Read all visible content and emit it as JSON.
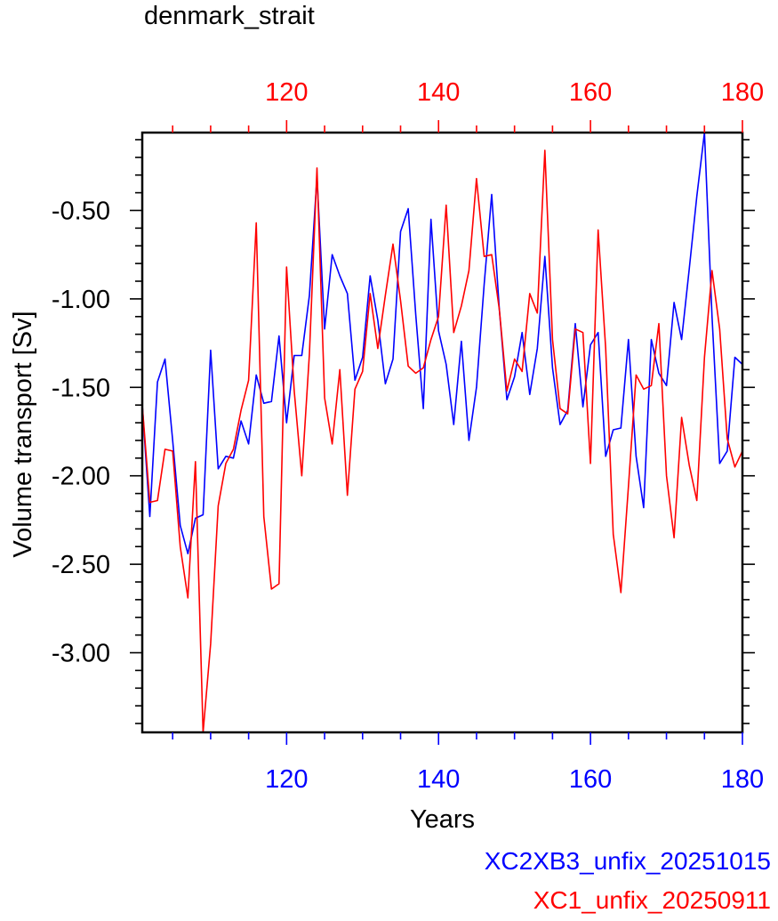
{
  "chart_data": {
    "type": "line",
    "title": "denmark_strait",
    "xlabel": "Years",
    "ylabel": "Volume transport [Sv]",
    "xlim": [
      101,
      180
    ],
    "ylim": [
      -3.45,
      -0.06
    ],
    "x_ticks": [
      120,
      140,
      160,
      180
    ],
    "x_tick_labels": [
      "120",
      "140",
      "160",
      "180"
    ],
    "y_ticks": [
      -3.0,
      -2.5,
      -2.0,
      -1.5,
      -1.0,
      -0.5
    ],
    "y_tick_labels": [
      "-3.00",
      "-2.50",
      "-2.00",
      "-1.50",
      "-1.00",
      "-0.50"
    ],
    "bottom_axis_color": "#0000ff",
    "top_axis_color": "#ff0000",
    "legend_position": "bottom-right",
    "series": [
      {
        "name": "XC2XB3_unfix_20251015",
        "color": "#0000ff",
        "x_start": 101,
        "values": [
          -1.6,
          -2.23,
          -1.47,
          -1.34,
          -1.8,
          -2.28,
          -2.44,
          -2.24,
          -2.22,
          -1.29,
          -1.96,
          -1.89,
          -1.9,
          -1.69,
          -1.82,
          -1.43,
          -1.59,
          -1.58,
          -1.21,
          -1.7,
          -1.32,
          -1.32,
          -0.98,
          -0.31,
          -1.17,
          -0.75,
          -0.87,
          -0.97,
          -1.46,
          -1.33,
          -0.87,
          -1.12,
          -1.48,
          -1.34,
          -0.62,
          -0.49,
          -1.09,
          -1.62,
          -0.55,
          -1.18,
          -1.37,
          -1.71,
          -1.24,
          -1.8,
          -1.5,
          -0.92,
          -0.41,
          -1.06,
          -1.57,
          -1.44,
          -1.19,
          -1.54,
          -1.28,
          -0.76,
          -1.39,
          -1.71,
          -1.63,
          -1.14,
          -1.61,
          -1.26,
          -1.19,
          -1.89,
          -1.74,
          -1.73,
          -1.23,
          -1.89,
          -2.18,
          -1.23,
          -1.42,
          -1.49,
          -1.02,
          -1.23,
          -0.83,
          -0.42,
          -0.06,
          -1.1,
          -1.93,
          -1.86,
          -1.33,
          -1.37
        ]
      },
      {
        "name": "XC1_unfix_20250911",
        "color": "#ff0000",
        "x_start": 101,
        "values": [
          -1.6,
          -2.15,
          -2.14,
          -1.85,
          -1.86,
          -2.4,
          -2.69,
          -1.92,
          -3.45,
          -2.95,
          -2.17,
          -1.93,
          -1.85,
          -1.63,
          -1.46,
          -0.57,
          -2.23,
          -2.64,
          -2.61,
          -0.82,
          -1.52,
          -2.0,
          -1.31,
          -0.26,
          -1.56,
          -1.82,
          -1.4,
          -2.11,
          -1.51,
          -1.41,
          -0.97,
          -1.28,
          -0.98,
          -0.69,
          -1.01,
          -1.38,
          -1.42,
          -1.39,
          -1.23,
          -1.1,
          -0.47,
          -1.19,
          -1.04,
          -0.84,
          -0.32,
          -0.76,
          -0.75,
          -1.06,
          -1.52,
          -1.34,
          -1.41,
          -0.97,
          -1.08,
          -0.16,
          -1.23,
          -1.62,
          -1.65,
          -1.17,
          -1.19,
          -1.93,
          -0.61,
          -1.28,
          -2.33,
          -2.66,
          -2.06,
          -1.43,
          -1.51,
          -1.49,
          -1.14,
          -2.0,
          -2.35,
          -1.67,
          -1.94,
          -2.14,
          -1.33,
          -0.84,
          -1.17,
          -1.79,
          -1.95,
          -1.86
        ]
      }
    ]
  }
}
